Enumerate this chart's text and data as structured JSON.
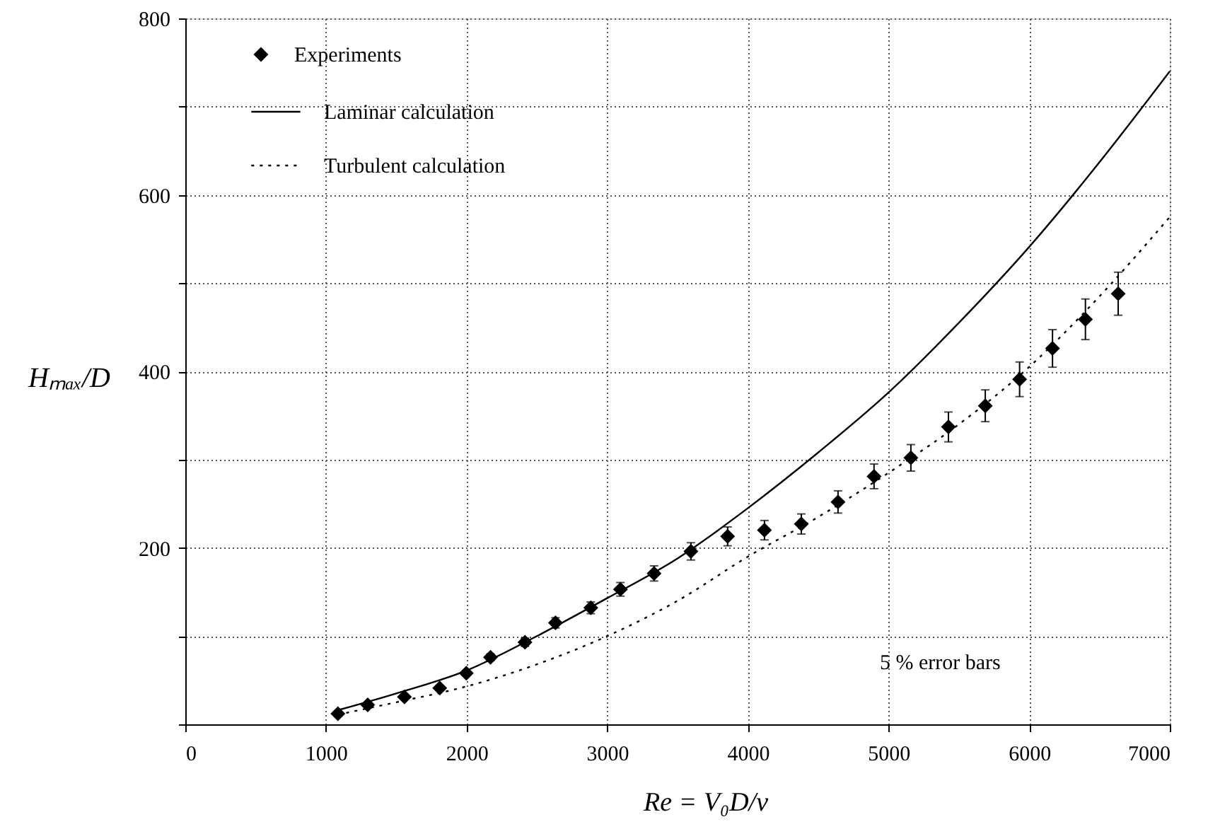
{
  "chart_data": {
    "type": "scatter",
    "xlabel": "Re = V₀D/ν",
    "ylabel": "Hₘₐₓ/D",
    "xlim": [
      0,
      7000
    ],
    "ylim": [
      0,
      800
    ],
    "xticks": [
      0,
      1000,
      2000,
      3000,
      4000,
      5000,
      6000,
      7000
    ],
    "yticks": [
      {
        "value": 0,
        "label": null
      },
      {
        "value": 100,
        "label": null
      },
      200,
      {
        "value": 300,
        "label": null
      },
      400,
      {
        "value": 500,
        "label": null
      },
      600,
      {
        "value": 700,
        "label": null
      },
      800
    ],
    "grid": true,
    "legend": "top left",
    "annotations": [
      "5 % error bars"
    ],
    "series": [
      {
        "name": "Experiments",
        "marker": "diamond",
        "color": "#000000",
        "x": [
          1085,
          1297,
          1558,
          1809,
          1998,
          2170,
          2415,
          2632,
          2883,
          3094,
          3333,
          3595,
          3856,
          4118,
          4380,
          4641,
          4897,
          5159,
          5426,
          5688,
          5932,
          6166,
          6400,
          6633
        ],
        "values": [
          12,
          22,
          31,
          41,
          58,
          76,
          93,
          115,
          132,
          153,
          171,
          196,
          213,
          220,
          227,
          252,
          281,
          302,
          337,
          361,
          391,
          426,
          459,
          488
        ],
        "errors": [
          0.6,
          1.1,
          1.6,
          2,
          2.9,
          3.8,
          4.7,
          5.8,
          6.6,
          7.7,
          8.6,
          9.8,
          10.7,
          11,
          11.4,
          12.6,
          14,
          15.1,
          16.9,
          18,
          19.6,
          21.3,
          23,
          24.4
        ]
      },
      {
        "name": "Laminar calculation",
        "type": "line",
        "line_style": "solid",
        "marker": "none",
        "color": "#000000",
        "x": [
          1085,
          1500,
          2000,
          2500,
          3000,
          3500,
          4000,
          4500,
          5000,
          5500,
          6000,
          6500,
          7000
        ],
        "values": [
          16,
          35,
          61,
          100,
          143,
          188,
          245,
          308,
          376,
          455,
          541,
          637,
          740
        ]
      },
      {
        "name": "Turbulent calculation",
        "type": "line",
        "line_style": "dotted",
        "marker": "none",
        "color": "#000000",
        "x": [
          1085,
          1500,
          2000,
          2500,
          3000,
          3500,
          4000,
          4500,
          5000,
          5500,
          6000,
          6500,
          7000
        ],
        "values": [
          11,
          25,
          43,
          68,
          100,
          140,
          190,
          235,
          285,
          340,
          405,
          485,
          575
        ]
      }
    ]
  }
}
